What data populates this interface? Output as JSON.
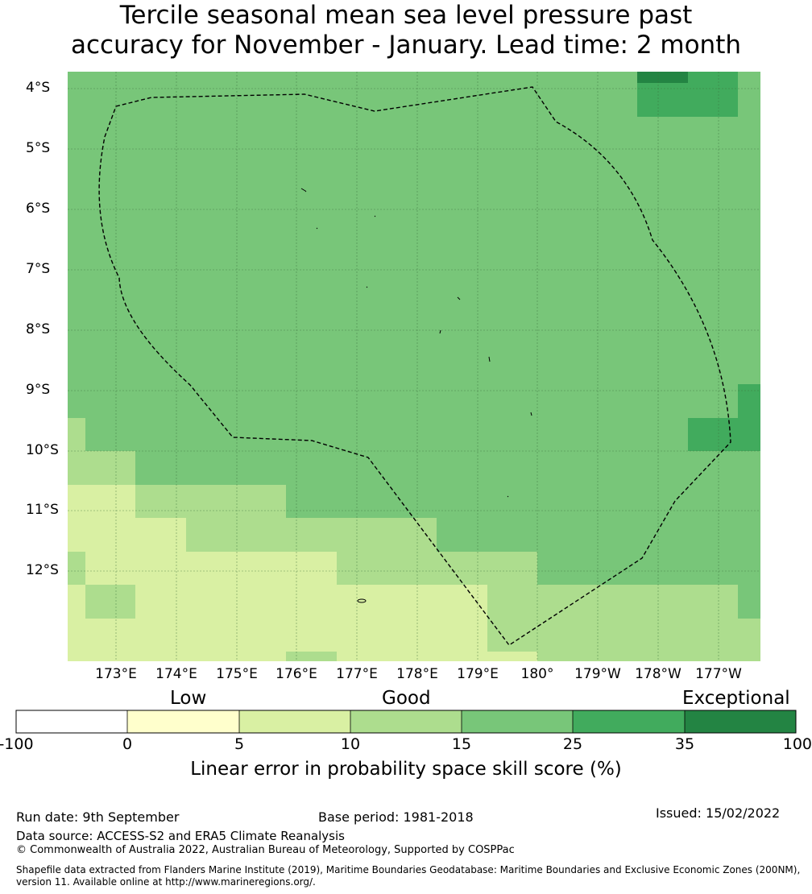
{
  "title": {
    "line1": "Tercile seasonal mean sea level pressure past",
    "line2": "accuracy for November - January. Lead time: 2 month"
  },
  "map": {
    "lat_labels": [
      "4°S",
      "5°S",
      "6°S",
      "7°S",
      "8°S",
      "9°S",
      "10°S",
      "11°S",
      "12°S"
    ],
    "lon_labels": [
      "173°E",
      "174°E",
      "175°E",
      "176°E",
      "177°E",
      "178°E",
      "179°E",
      "180°",
      "179°W",
      "178°W",
      "177°W"
    ],
    "legend_colors": {
      "lt0": "#ffffff",
      "0-5": "#ffffcc",
      "5-10": "#d9f0a3",
      "10-15": "#addd8e",
      "15-25": "#78c679",
      "25-35": "#41ab5d",
      "35-100": "#238443"
    },
    "gridline_color": "#3a6e3a",
    "boundary_style": "dashed black"
  },
  "colorbar": {
    "categories": [
      "Low",
      "Good",
      "Exceptional"
    ],
    "ticks": [
      "-100",
      "0",
      "5",
      "10",
      "15",
      "25",
      "35",
      "100"
    ],
    "colors": [
      "#ffffff",
      "#ffffcc",
      "#d9f0a3",
      "#addd8e",
      "#78c679",
      "#41ab5d",
      "#238443"
    ],
    "label": "Linear error in probability space skill score (%)"
  },
  "footer": {
    "run_date": "Run date: 9th September",
    "base_period": "Base period: 1981-2018",
    "issued": "Issued: 15/02/2022",
    "data_source": "Data source: ACCESS-S2 and ERA5 Climate Reanalysis",
    "copyright": "© Commonwealth of Australia 2022, Australian Bureau of Meteorology, Supported by COSPPac",
    "shapefile_line1": "Shapefile data extracted from Flanders Marine Institute (2019), Maritime Boundaries Geodatabase: Maritime Boundaries and Exclusive Economic Zones (200NM),",
    "shapefile_line2": "version 11. Available online at http://www.marineregions.org/."
  }
}
